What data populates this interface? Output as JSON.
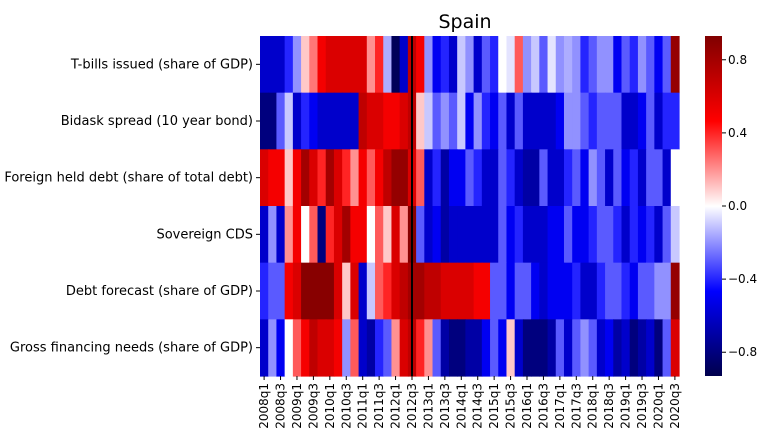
{
  "chart_data": {
    "type": "heatmap",
    "title": "Spain",
    "rows": [
      "T-bills issued (share of GDP)",
      "Bidask spread (10 year bond)",
      "Foreign held debt (share of total debt)",
      "Sovereign CDS",
      "Debt forecast (share of GDP)",
      "Gross financing needs (share of GDP)"
    ],
    "columns": [
      "2008q1",
      "2008q2",
      "2008q3",
      "2008q4",
      "2009q1",
      "2009q2",
      "2009q3",
      "2009q4",
      "2010q1",
      "2010q2",
      "2010q3",
      "2010q4",
      "2011q1",
      "2011q2",
      "2011q3",
      "2011q4",
      "2012q1",
      "2012q2",
      "2012q3",
      "2012q4",
      "2013q1",
      "2013q2",
      "2013q3",
      "2013q4",
      "2014q1",
      "2014q2",
      "2014q3",
      "2014q4",
      "2015q1",
      "2015q2",
      "2015q3",
      "2015q4",
      "2016q1",
      "2016q2",
      "2016q3",
      "2016q4",
      "2017q1",
      "2017q2",
      "2017q3",
      "2017q4",
      "2018q1",
      "2018q2",
      "2018q3",
      "2018q4",
      "2019q1",
      "2019q2",
      "2019q3",
      "2019q4",
      "2020q1",
      "2020q2",
      "2020q3"
    ],
    "x_tick_labels": [
      "2008q1",
      "2008q3",
      "2009q1",
      "2009q3",
      "2010q1",
      "2010q3",
      "2011q1",
      "2011q3",
      "2012q1",
      "2012q3",
      "2013q1",
      "2013q3",
      "2014q1",
      "2014q3",
      "2015q1",
      "2015q3",
      "2016q1",
      "2016q3",
      "2017q1",
      "2017q3",
      "2018q1",
      "2018q3",
      "2019q1",
      "2019q3",
      "2020q1",
      "2020q3"
    ],
    "values": [
      [
        -0.6,
        -0.6,
        -0.6,
        -0.4,
        -0.2,
        0.1,
        0.25,
        0.5,
        0.6,
        0.6,
        0.6,
        0.6,
        0.6,
        0.2,
        0.4,
        -0.15,
        -0.9,
        -0.6,
        0.7,
        0.5,
        -0.2,
        -0.5,
        -0.4,
        -0.6,
        -0.1,
        -0.2,
        -0.6,
        -0.3,
        -0.4,
        0.0,
        -0.05,
        0.3,
        -0.2,
        -0.1,
        -0.3,
        -0.05,
        -0.2,
        -0.15,
        -0.2,
        -0.4,
        -0.3,
        -0.2,
        -0.2,
        -0.5,
        -0.3,
        -0.4,
        -0.2,
        -0.3,
        -0.5,
        -0.3,
        0.85
      ],
      [
        -0.8,
        -0.8,
        -0.3,
        -0.1,
        -0.6,
        -0.4,
        -0.5,
        -0.6,
        -0.6,
        -0.6,
        -0.6,
        -0.6,
        0.7,
        0.6,
        0.6,
        0.5,
        0.5,
        0.6,
        0.7,
        0.1,
        -0.1,
        -0.3,
        -0.2,
        -0.3,
        -0.1,
        -0.5,
        -0.2,
        -0.4,
        -0.5,
        -0.3,
        -0.6,
        -0.3,
        -0.6,
        -0.6,
        -0.6,
        -0.6,
        -0.5,
        -0.2,
        -0.2,
        -0.3,
        -0.4,
        -0.3,
        -0.3,
        -0.3,
        -0.6,
        -0.6,
        -0.5,
        -0.3,
        -0.6,
        -0.4,
        -0.4
      ],
      [
        0.6,
        0.5,
        0.5,
        0.1,
        0.5,
        0.8,
        0.6,
        0.4,
        0.8,
        0.6,
        0.4,
        0.2,
        0.5,
        0.3,
        0.5,
        0.7,
        0.85,
        0.85,
        0.6,
        0.3,
        -0.6,
        -0.4,
        -0.7,
        -0.5,
        -0.5,
        -0.3,
        -0.4,
        -0.6,
        -0.6,
        -0.3,
        -0.4,
        -0.6,
        -0.7,
        -0.7,
        -0.3,
        -0.6,
        -0.6,
        -0.4,
        -0.3,
        -0.5,
        -0.2,
        -0.3,
        -0.6,
        -0.3,
        -0.5,
        -0.4,
        -0.6,
        -0.3,
        -0.3,
        -0.6,
        0.0
      ],
      [
        -0.6,
        -0.2,
        -0.6,
        0.2,
        0.5,
        0.0,
        0.3,
        -0.8,
        0.4,
        0.6,
        0.8,
        0.5,
        0.5,
        0.0,
        0.3,
        0.1,
        0.6,
        0.2,
        0.9,
        -0.3,
        -0.6,
        -0.5,
        -0.7,
        -0.6,
        -0.6,
        -0.6,
        -0.6,
        -0.6,
        -0.6,
        -0.3,
        -0.5,
        -0.4,
        -0.6,
        -0.6,
        -0.6,
        -0.5,
        -0.5,
        -0.3,
        -0.5,
        -0.5,
        -0.4,
        -0.3,
        -0.3,
        -0.4,
        -0.6,
        -0.4,
        -0.5,
        -0.4,
        -0.6,
        -0.3,
        -0.1
      ],
      [
        -0.4,
        -0.3,
        -0.3,
        0.5,
        0.6,
        0.9,
        0.9,
        0.9,
        0.9,
        0.6,
        0.1,
        0.6,
        -0.6,
        -0.1,
        0.3,
        0.4,
        0.6,
        0.7,
        0.8,
        0.8,
        0.7,
        0.7,
        0.6,
        0.6,
        0.6,
        0.6,
        0.5,
        0.5,
        -0.3,
        -0.3,
        -0.5,
        -0.3,
        -0.3,
        -0.5,
        -0.6,
        -0.5,
        -0.5,
        -0.5,
        -0.4,
        -0.6,
        -0.6,
        -0.4,
        -0.3,
        -0.3,
        -0.4,
        -0.5,
        -0.3,
        -0.3,
        -0.2,
        -0.2,
        0.85
      ],
      [
        -0.6,
        -0.2,
        -0.5,
        0.0,
        0.3,
        0.5,
        0.7,
        0.6,
        0.6,
        0.5,
        -0.2,
        0.3,
        -0.6,
        -0.7,
        -0.4,
        -0.3,
        0.2,
        0.6,
        0.7,
        0.4,
        0.2,
        -0.3,
        -0.7,
        -0.8,
        -0.8,
        -0.7,
        -0.7,
        -0.5,
        -0.3,
        -0.5,
        0.1,
        -0.6,
        -0.8,
        -0.8,
        -0.8,
        -0.7,
        -0.3,
        -0.6,
        -0.3,
        -0.2,
        -0.3,
        -0.6,
        -0.5,
        -0.7,
        -0.6,
        -0.8,
        -0.7,
        -0.6,
        -0.8,
        -0.3,
        0.6
      ]
    ],
    "vline_at": "2012q3",
    "colorbar": {
      "colormap": "seismic",
      "vmin": -0.93,
      "vmax": 0.93,
      "ticks": [
        0.8,
        0.4,
        0.0,
        -0.4,
        -0.8
      ],
      "tick_labels": [
        "0.8",
        "0.4",
        "0.0",
        "−0.4",
        "−0.8"
      ]
    }
  }
}
